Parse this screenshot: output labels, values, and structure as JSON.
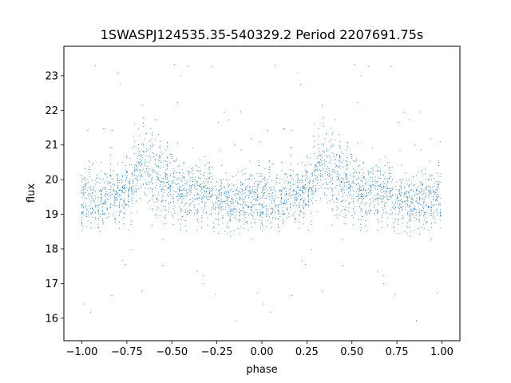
{
  "chart_data": {
    "type": "scatter",
    "title": "1SWASPJ124535.35-540329.2 Period 2207691.75s",
    "xlabel": "phase",
    "ylabel": "flux",
    "xlim": [
      -1.1,
      1.1
    ],
    "ylim": [
      15.35,
      23.85
    ],
    "xticks": [
      -1.0,
      -0.75,
      -0.5,
      -0.25,
      0.0,
      0.25,
      0.5,
      0.75,
      1.0
    ],
    "xtick_labels": [
      "−1.00",
      "−0.75",
      "−0.50",
      "−0.25",
      "0.00",
      "0.25",
      "0.50",
      "0.75",
      "1.00"
    ],
    "yticks": [
      16,
      17,
      18,
      19,
      20,
      21,
      22,
      23
    ],
    "ytick_labels": [
      "16",
      "17",
      "18",
      "19",
      "20",
      "21",
      "22",
      "23"
    ],
    "grid": false,
    "marker_color": "#1f77b4",
    "series": [
      {
        "description_of_shape": "phase-folded light curve, mirrored over phase -1..0 and 0..1",
        "profile_phase": [
          0.0,
          0.05,
          0.1,
          0.15,
          0.2,
          0.25,
          0.3,
          0.35,
          0.4,
          0.45,
          0.5,
          0.55,
          0.6,
          0.65,
          0.7,
          0.75,
          0.8,
          0.85,
          0.9,
          0.95,
          1.0
        ],
        "profile_flux_median": [
          19.5,
          19.6,
          19.5,
          19.6,
          19.5,
          19.7,
          20.2,
          20.4,
          20.1,
          20.0,
          19.8,
          19.8,
          19.6,
          19.7,
          19.6,
          19.4,
          19.4,
          19.3,
          19.4,
          19.5,
          19.5
        ],
        "profile_flux_halfwidth": [
          1.0,
          1.2,
          1.1,
          1.0,
          0.9,
          0.9,
          1.2,
          1.3,
          1.3,
          1.2,
          1.3,
          1.2,
          1.0,
          1.1,
          1.0,
          0.9,
          1.0,
          1.0,
          1.0,
          1.1,
          1.0
        ],
        "flux_min": 15.9,
        "flux_max": 23.5
      }
    ]
  }
}
